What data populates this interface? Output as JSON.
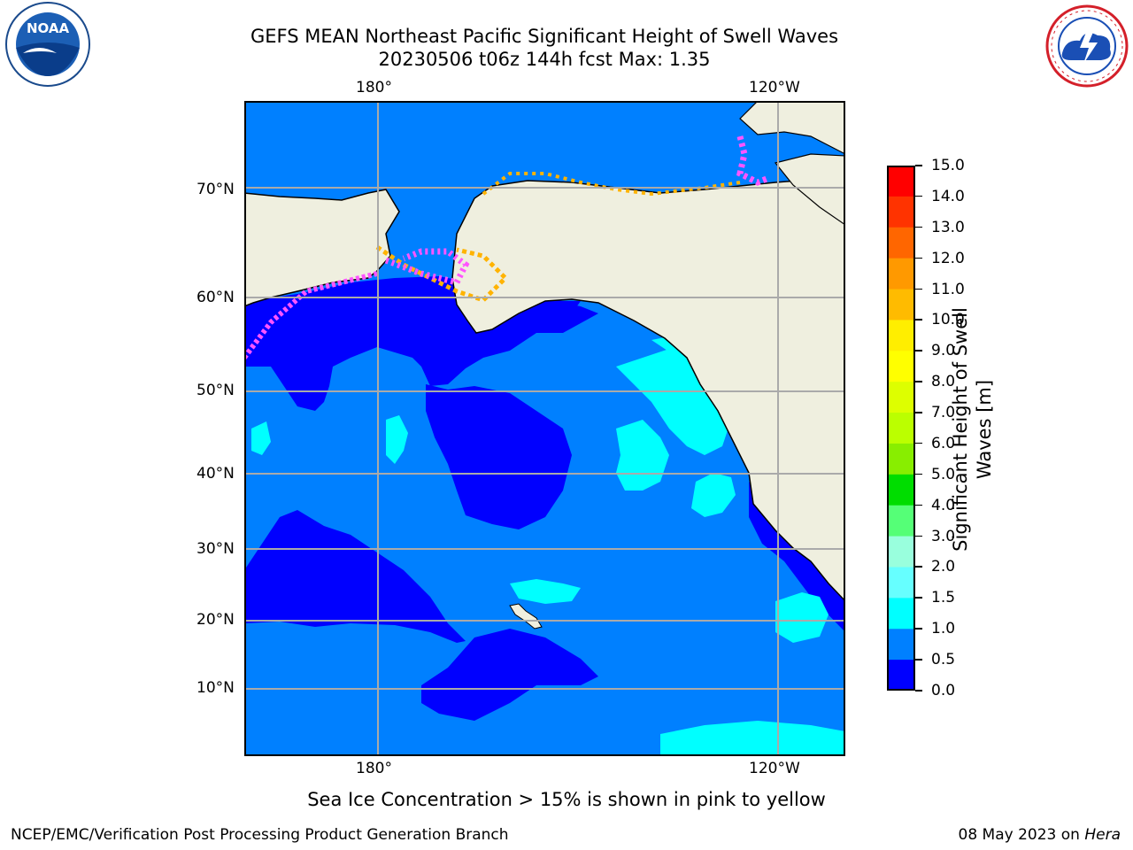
{
  "header": {
    "title_line1": "GEFS MEAN Northeast Pacific Significant Height of Swell Waves",
    "title_line2": "20230506 t06z 144h fcst   Max: 1.35"
  },
  "logos": {
    "left": {
      "name": "NOAA",
      "text": "NOAA",
      "ring_text": "NATIONAL OCEANIC AND ATMOSPHERIC ADMINISTRATION · U.S. DEPARTMENT OF COMMERCE"
    },
    "right": {
      "name": "National Weather Service",
      "ring_text": "NATIONAL WEATHER SERVICE"
    }
  },
  "map": {
    "lon_labels_top": [
      "180°",
      "120°W"
    ],
    "lon_labels_bottom": [
      "180°",
      "120°W"
    ],
    "lat_labels": [
      "70°N",
      "60°N",
      "50°N",
      "40°N",
      "30°N",
      "20°N",
      "10°N"
    ],
    "colors": {
      "land": "#efefdf",
      "sea_0_0.5": "#0000ff",
      "sea_0.5_1.0": "#0080ff",
      "sea_1.0_1.5": "#00ffff",
      "ice_pink": "#ff55ff",
      "ice_orange": "#ffb300",
      "ice_yellow": "#ffff00",
      "grid": "#aaaaaa"
    }
  },
  "colorbar": {
    "label": "Significant Height of Swell Waves [m]",
    "label_line1": "Significant Height of Swell",
    "label_line2": "Waves [m]",
    "ticks": [
      "15.0",
      "14.0",
      "13.0",
      "12.0",
      "11.0",
      "10.0",
      "9.0",
      "8.0",
      "7.0",
      "6.0",
      "5.0",
      "4.0",
      "3.0",
      "2.0",
      "1.5",
      "1.0",
      "0.5",
      "0.0"
    ],
    "colors": [
      "#ff0000",
      "#ff3300",
      "#ff6600",
      "#ff9900",
      "#ffbb00",
      "#ffee00",
      "#ffff00",
      "#ddff00",
      "#bbff00",
      "#88ee00",
      "#00dd00",
      "#55ff77",
      "#99ffdd",
      "#66ffff",
      "#00ffff",
      "#0080ff",
      "#0000ff"
    ]
  },
  "caption": "Sea Ice Concentration > 15% is shown in pink to yellow",
  "footer": {
    "left": "NCEP/EMC/Verification Post Processing Product Generation Branch",
    "right_date": "08 May 2023 on ",
    "right_machine": "Hera"
  }
}
